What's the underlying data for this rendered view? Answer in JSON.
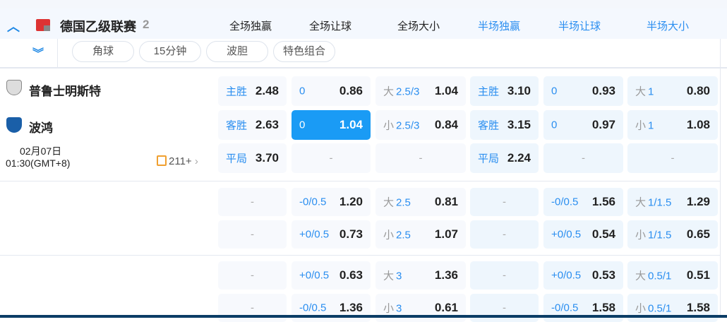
{
  "league": {
    "name": "德国乙级联赛",
    "count": "2"
  },
  "columns": [
    {
      "label": "全场独赢",
      "color": "#222"
    },
    {
      "label": "全场让球",
      "color": "#222"
    },
    {
      "label": "全场大小",
      "color": "#222"
    },
    {
      "label": "半场独赢",
      "color": "#2a8ef0"
    },
    {
      "label": "半场让球",
      "color": "#2a8ef0"
    },
    {
      "label": "半场大小",
      "color": "#2a8ef0"
    }
  ],
  "filters": [
    "角球",
    "15分钟",
    "波胆",
    "特色组合"
  ],
  "match": {
    "home": "普鲁士明斯特",
    "away": "波鸿",
    "date": "02月07日",
    "time": "01:30(GMT+8)",
    "more": "211+"
  },
  "groups": [
    {
      "rows": [
        [
          {
            "l": "主胜",
            "v": "2.48"
          },
          {
            "l": "0",
            "v": "0.86"
          },
          {
            "g": "大",
            "l": "2.5/3",
            "v": "1.04"
          },
          {
            "l": "主胜",
            "v": "3.10"
          },
          {
            "l": "0",
            "v": "0.93"
          },
          {
            "g": "大",
            "l": "1",
            "v": "0.80"
          }
        ],
        [
          {
            "l": "客胜",
            "v": "2.63"
          },
          {
            "l": "0",
            "v": "1.04",
            "selected": true
          },
          {
            "g": "小",
            "l": "2.5/3",
            "v": "0.84"
          },
          {
            "l": "客胜",
            "v": "3.15"
          },
          {
            "l": "0",
            "v": "0.97"
          },
          {
            "g": "小",
            "l": "1",
            "v": "1.08"
          }
        ],
        [
          {
            "l": "平局",
            "v": "3.70"
          },
          {
            "dash": "-"
          },
          {
            "dash": "-"
          },
          {
            "l": "平局",
            "v": "2.24"
          },
          {
            "dash": "-"
          },
          {
            "dash": "-"
          }
        ]
      ]
    },
    {
      "rows": [
        [
          {
            "dash": "-"
          },
          {
            "l": "-0/0.5",
            "v": "1.20"
          },
          {
            "g": "大",
            "l": "2.5",
            "v": "0.81"
          },
          {
            "dash": "-"
          },
          {
            "l": "-0/0.5",
            "v": "1.56"
          },
          {
            "g": "大",
            "l": "1/1.5",
            "v": "1.29"
          }
        ],
        [
          {
            "dash": "-"
          },
          {
            "l": "+0/0.5",
            "v": "0.73"
          },
          {
            "g": "小",
            "l": "2.5",
            "v": "1.07"
          },
          {
            "dash": "-"
          },
          {
            "l": "+0/0.5",
            "v": "0.54"
          },
          {
            "g": "小",
            "l": "1/1.5",
            "v": "0.65"
          }
        ]
      ]
    },
    {
      "rows": [
        [
          {
            "dash": "-"
          },
          {
            "l": "+0/0.5",
            "v": "0.63"
          },
          {
            "g": "大",
            "l": "3",
            "v": "1.36"
          },
          {
            "dash": "-"
          },
          {
            "l": "+0/0.5",
            "v": "0.53"
          },
          {
            "g": "大",
            "l": "0.5/1",
            "v": "0.51"
          }
        ],
        [
          {
            "dash": "-"
          },
          {
            "l": "-0/0.5",
            "v": "1.36"
          },
          {
            "g": "小",
            "l": "3",
            "v": "0.61"
          },
          {
            "dash": "-"
          },
          {
            "l": "-0/0.5",
            "v": "1.58"
          },
          {
            "g": "小",
            "l": "0.5/1",
            "v": "1.58"
          }
        ]
      ]
    }
  ],
  "colors": {
    "accent": "#1a9bf5",
    "header_bg": "#f4f8fe"
  }
}
